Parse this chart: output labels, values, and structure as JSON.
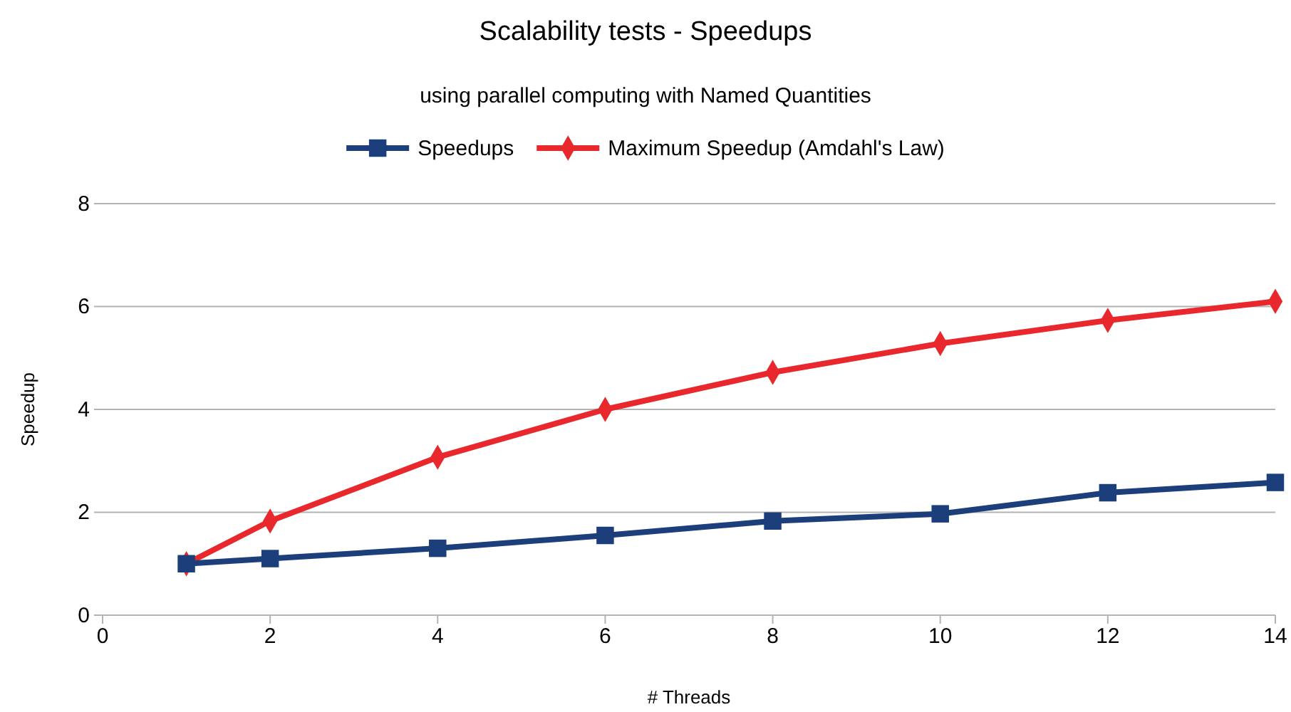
{
  "chart_data": {
    "type": "line",
    "title": "Scalability tests - Speedups",
    "subtitle": "using parallel computing with Named Quantities",
    "xlabel": "# Threads",
    "ylabel": "Speedup",
    "x": [
      1,
      2,
      4,
      6,
      8,
      10,
      12,
      14
    ],
    "series": [
      {
        "name": "Speedups",
        "color": "#1c3f7c",
        "marker": "square",
        "values": [
          1.0,
          1.1,
          1.3,
          1.55,
          1.83,
          1.97,
          2.38,
          2.58
        ]
      },
      {
        "name": "Maximum Speedup (Amdahl's Law)",
        "color": "#e8282c",
        "marker": "diamond",
        "values": [
          1.0,
          1.83,
          3.07,
          4.0,
          4.72,
          5.28,
          5.73,
          6.1
        ]
      }
    ],
    "xlim": [
      0,
      14
    ],
    "xticks": [
      0,
      2,
      4,
      6,
      8,
      10,
      12,
      14
    ],
    "ylim": [
      0,
      8
    ],
    "yticks": [
      0,
      2,
      4,
      6,
      8
    ],
    "grid": "y",
    "legend": "top",
    "line_style": "solid"
  }
}
